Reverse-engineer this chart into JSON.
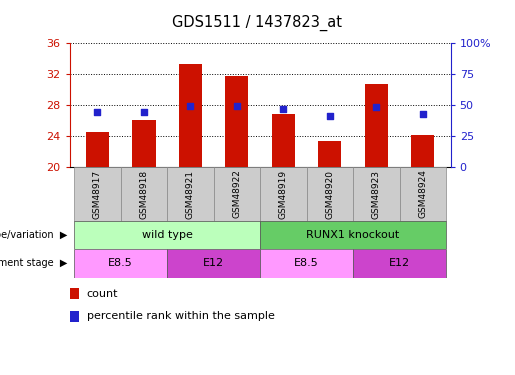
{
  "title": "GDS1511 / 1437823_at",
  "samples": [
    "GSM48917",
    "GSM48918",
    "GSM48921",
    "GSM48922",
    "GSM48919",
    "GSM48920",
    "GSM48923",
    "GSM48924"
  ],
  "count_values": [
    24.5,
    26.0,
    33.3,
    31.7,
    26.8,
    23.3,
    30.7,
    24.1
  ],
  "percentile_values": [
    44,
    44,
    49,
    49,
    47,
    41,
    48,
    43
  ],
  "ylim_left": [
    20,
    36
  ],
  "ylim_right": [
    0,
    100
  ],
  "yticks_left": [
    20,
    24,
    28,
    32,
    36
  ],
  "yticks_right": [
    0,
    25,
    50,
    75,
    100
  ],
  "bar_color": "#cc1100",
  "dot_color": "#2222cc",
  "plot_bg_color": "#ffffff",
  "tick_label_color_left": "#cc1100",
  "tick_label_color_right": "#2222cc",
  "bar_width": 0.5,
  "geno_colors": [
    "#bbffbb",
    "#66cc66"
  ],
  "geno_labels": [
    "wild type",
    "RUNX1 knockout"
  ],
  "stage_colors_light": "#ff99ff",
  "stage_colors_dark": "#cc44cc",
  "stage_labels": [
    "E8.5",
    "E12",
    "E8.5",
    "E12"
  ],
  "legend_count_label": "count",
  "legend_perc_label": "percentile rank within the sample"
}
